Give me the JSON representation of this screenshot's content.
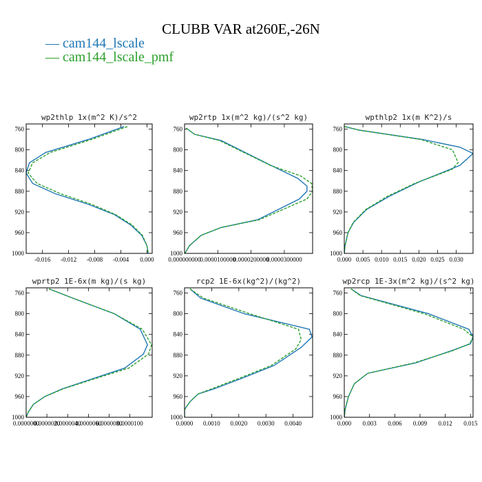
{
  "figure": {
    "title": "CLUBB VAR at260E,-26N",
    "legend": [
      {
        "label": "— cam144_lscale",
        "color": "#1f77b4"
      },
      {
        "label": "— cam144_lscale_pmf",
        "color": "#2ca02c"
      }
    ]
  },
  "chart_data": [
    {
      "type": "line",
      "title": "wp2thlp  1x(m^2 K)/s^2",
      "xlim": [
        -0.0185,
        0.0008
      ],
      "ylim": [
        1000,
        750
      ],
      "x_ticks": [
        -0.016,
        -0.012,
        -0.008,
        -0.004,
        0.0
      ],
      "x_tick_labels": [
        "-0.016",
        "-0.012",
        "-0.008",
        "-0.004",
        "0.000"
      ],
      "y_ticks": [
        760,
        800,
        840,
        880,
        920,
        960,
        1000
      ],
      "y_tick_labels": [
        "760",
        "800",
        "840",
        "880",
        "920",
        "960",
        "1000"
      ],
      "series": [
        {
          "name": "cam144_lscale",
          "color": "#1f77b4",
          "dash": "none",
          "x": [
            -0.0035,
            -0.009,
            -0.0155,
            -0.018,
            -0.0185,
            -0.0175,
            -0.014,
            -0.009,
            -0.005,
            -0.0025,
            -0.0008,
            0.0,
            0.0002
          ],
          "y": [
            755,
            780,
            805,
            825,
            845,
            865,
            885,
            905,
            925,
            945,
            965,
            985,
            1000
          ]
        },
        {
          "name": "cam144_lscale_pmf",
          "color": "#2ca02c",
          "dash": "4,2",
          "x": [
            -0.003,
            -0.0085,
            -0.0148,
            -0.0175,
            -0.0182,
            -0.0168,
            -0.0132,
            -0.0085,
            -0.0048,
            -0.0023,
            -0.0007,
            0.0,
            0.0002
          ],
          "y": [
            755,
            780,
            805,
            825,
            845,
            865,
            885,
            905,
            925,
            945,
            965,
            985,
            1000
          ]
        }
      ]
    },
    {
      "type": "line",
      "title": "wp2rtp  1x(m^2 kg)/(s^2 kg)",
      "xlim": [
        0.0,
        3.85e-05
      ],
      "ylim": [
        1000,
        750
      ],
      "x_ticks": [
        0.0,
        1e-05,
        2e-05,
        3e-05
      ],
      "x_tick_labels": [
        "0.000000000",
        "0.0000100000",
        "0.0000200000",
        "0.0000300000"
      ],
      "y_ticks": [
        760,
        800,
        840,
        880,
        920,
        960,
        1000
      ],
      "y_tick_labels": [
        "760",
        "800",
        "840",
        "880",
        "920",
        "960",
        "1000"
      ],
      "series": [
        {
          "name": "cam144_lscale",
          "color": "#1f77b4",
          "dash": "none",
          "x": [
            5e-07,
            3e-06,
            1.1e-05,
            2.6e-05,
            3.4e-05,
            3.68e-05,
            3.68e-05,
            3.45e-05,
            2.2e-05,
            1.1e-05,
            5e-06,
            1.5e-06,
            1e-07
          ],
          "y": [
            758,
            770,
            782,
            830,
            855,
            870,
            880,
            895,
            935,
            950,
            965,
            985,
            1000
          ]
        },
        {
          "name": "cam144_lscale_pmf",
          "color": "#2ca02c",
          "dash": "4,2",
          "x": [
            5e-07,
            3e-06,
            1.05e-05,
            2.58e-05,
            3.48e-05,
            3.82e-05,
            3.85e-05,
            3.68e-05,
            2.25e-05,
            1.1e-05,
            5e-06,
            1.5e-06,
            1e-07
          ],
          "y": [
            758,
            770,
            782,
            830,
            850,
            865,
            880,
            895,
            935,
            950,
            965,
            985,
            1000
          ]
        }
      ]
    },
    {
      "type": "line",
      "title": "wpthlp2  1x(m K^2)/s",
      "xlim": [
        0.0,
        0.0345
      ],
      "ylim": [
        1000,
        750
      ],
      "x_ticks": [
        0.0,
        0.005,
        0.01,
        0.015,
        0.02,
        0.025,
        0.03
      ],
      "x_tick_labels": [
        "0.000",
        "0.005",
        "0.010",
        "0.015",
        "0.020",
        "0.025",
        "0.030"
      ],
      "y_ticks": [
        760,
        800,
        840,
        880,
        920,
        960,
        1000
      ],
      "y_tick_labels": [
        "760",
        "800",
        "840",
        "880",
        "920",
        "960",
        "1000"
      ],
      "series": [
        {
          "name": "cam144_lscale",
          "color": "#1f77b4",
          "dash": "none",
          "x": [
            0.0001,
            0.004,
            0.021,
            0.031,
            0.0345,
            0.031,
            0.02,
            0.012,
            0.006,
            0.0025,
            0.001,
            0.0002,
            0.0
          ],
          "y": [
            755,
            762,
            780,
            795,
            807,
            830,
            862,
            890,
            915,
            940,
            960,
            985,
            1000
          ]
        },
        {
          "name": "cam144_lscale_pmf",
          "color": "#2ca02c",
          "dash": "4,2",
          "x": [
            0.0001,
            0.004,
            0.0205,
            0.029,
            0.0305,
            0.0288,
            0.0188,
            0.0115,
            0.0058,
            0.0024,
            0.001,
            0.0002,
            0.0
          ],
          "y": [
            755,
            762,
            780,
            800,
            825,
            838,
            865,
            890,
            915,
            940,
            960,
            985,
            1000
          ]
        }
      ]
    },
    {
      "type": "line",
      "title": "wprtp2  1E-6x(m kg)/(s kg)",
      "xlim": [
        0.0,
        1.215e-05
      ],
      "ylim": [
        1000,
        750
      ],
      "x_ticks": [
        0.0,
        2e-06,
        4e-06,
        6e-06,
        8e-06,
        1e-05
      ],
      "x_tick_labels": [
        "0.0000000",
        "0.0000020",
        "0.0000040",
        "0.0000060",
        "0.0000080",
        "0.0000100"
      ],
      "y_ticks": [
        760,
        800,
        840,
        880,
        920,
        960,
        1000
      ],
      "y_tick_labels": [
        "760",
        "800",
        "840",
        "880",
        "920",
        "960",
        "1000"
      ],
      "series": [
        {
          "name": "cam144_lscale",
          "color": "#1f77b4",
          "dash": "none",
          "x": [
            2.2e-06,
            4.5e-06,
            8.5e-06,
            1.1e-05,
            1.17e-05,
            1.13e-05,
            9.5e-06,
            6.5e-06,
            3.5e-06,
            1.8e-06,
            7e-07,
            2e-07,
            0.0
          ],
          "y": [
            752,
            770,
            800,
            830,
            860,
            878,
            905,
            925,
            945,
            960,
            975,
            990,
            1000
          ]
        },
        {
          "name": "cam144_lscale_pmf",
          "color": "#2ca02c",
          "dash": "4,2",
          "x": [
            2.2e-06,
            4.5e-06,
            8.5e-06,
            1.12e-05,
            1.21e-05,
            1.18e-05,
            9.9e-06,
            6.7e-06,
            3.6e-06,
            1.8e-06,
            7e-07,
            2e-07,
            0.0
          ],
          "y": [
            752,
            770,
            800,
            830,
            860,
            878,
            905,
            925,
            945,
            960,
            975,
            990,
            1000
          ]
        }
      ]
    },
    {
      "type": "line",
      "title": "rcp2  1E-6x(kg^2)/(kg^2)",
      "xlim": [
        0.0,
        0.00472
      ],
      "ylim": [
        1000,
        750
      ],
      "x_ticks": [
        0.0,
        0.001,
        0.002,
        0.003,
        0.004
      ],
      "x_tick_labels": [
        "0.0000",
        "0.0010",
        "0.0020",
        "0.0030",
        "0.0040"
      ],
      "y_ticks": [
        760,
        800,
        840,
        880,
        920,
        960,
        1000
      ],
      "y_tick_labels": [
        "760",
        "800",
        "840",
        "880",
        "920",
        "960",
        "1000"
      ],
      "series": [
        {
          "name": "cam144_lscale",
          "color": "#1f77b4",
          "dash": "none",
          "x": [
            0.0002,
            0.0006,
            0.0022,
            0.0046,
            0.0047,
            0.0043,
            0.0033,
            0.0021,
            0.0011,
            0.0005,
            0.0002,
            0.0,
            0.0
          ],
          "y": [
            752,
            770,
            800,
            830,
            845,
            865,
            900,
            925,
            945,
            955,
            970,
            985,
            1000
          ]
        },
        {
          "name": "cam144_lscale_pmf",
          "color": "#2ca02c",
          "dash": "4,2",
          "x": [
            0.0002,
            0.0007,
            0.0024,
            0.0042,
            0.0043,
            0.0041,
            0.0032,
            0.002,
            0.001,
            0.0005,
            0.0002,
            0.0,
            0.0
          ],
          "y": [
            752,
            770,
            800,
            830,
            850,
            868,
            900,
            925,
            945,
            955,
            970,
            985,
            1000
          ]
        }
      ]
    },
    {
      "type": "line",
      "title": "wp2rcp  1E-3x(m^2 kg)/(s^2 kg)",
      "xlim": [
        0.0,
        0.0153
      ],
      "ylim": [
        1000,
        750
      ],
      "x_ticks": [
        0.0,
        0.003,
        0.006,
        0.009,
        0.012,
        0.015
      ],
      "x_tick_labels": [
        "0.000",
        "0.003",
        "0.006",
        "0.009",
        "0.012",
        "0.015"
      ],
      "y_ticks": [
        760,
        800,
        840,
        880,
        920,
        960,
        1000
      ],
      "y_tick_labels": [
        "760",
        "800",
        "840",
        "880",
        "920",
        "960",
        "1000"
      ],
      "series": [
        {
          "name": "cam144_lscale",
          "color": "#1f77b4",
          "dash": "none",
          "x": [
            0.0008,
            0.002,
            0.01,
            0.0148,
            0.0153,
            0.015,
            0.013,
            0.0085,
            0.0028,
            0.0012,
            0.0005,
            0.0001,
            0.0
          ],
          "y": [
            752,
            765,
            800,
            830,
            845,
            858,
            870,
            895,
            915,
            935,
            960,
            985,
            1000
          ]
        },
        {
          "name": "cam144_lscale_pmf",
          "color": "#2ca02c",
          "dash": "4,2",
          "x": [
            0.0008,
            0.0019,
            0.0095,
            0.0142,
            0.0153,
            0.0149,
            0.0128,
            0.0083,
            0.0028,
            0.0012,
            0.0005,
            0.0001,
            0.0
          ],
          "y": [
            752,
            765,
            800,
            830,
            845,
            858,
            872,
            895,
            915,
            935,
            960,
            985,
            1000
          ]
        }
      ]
    }
  ]
}
